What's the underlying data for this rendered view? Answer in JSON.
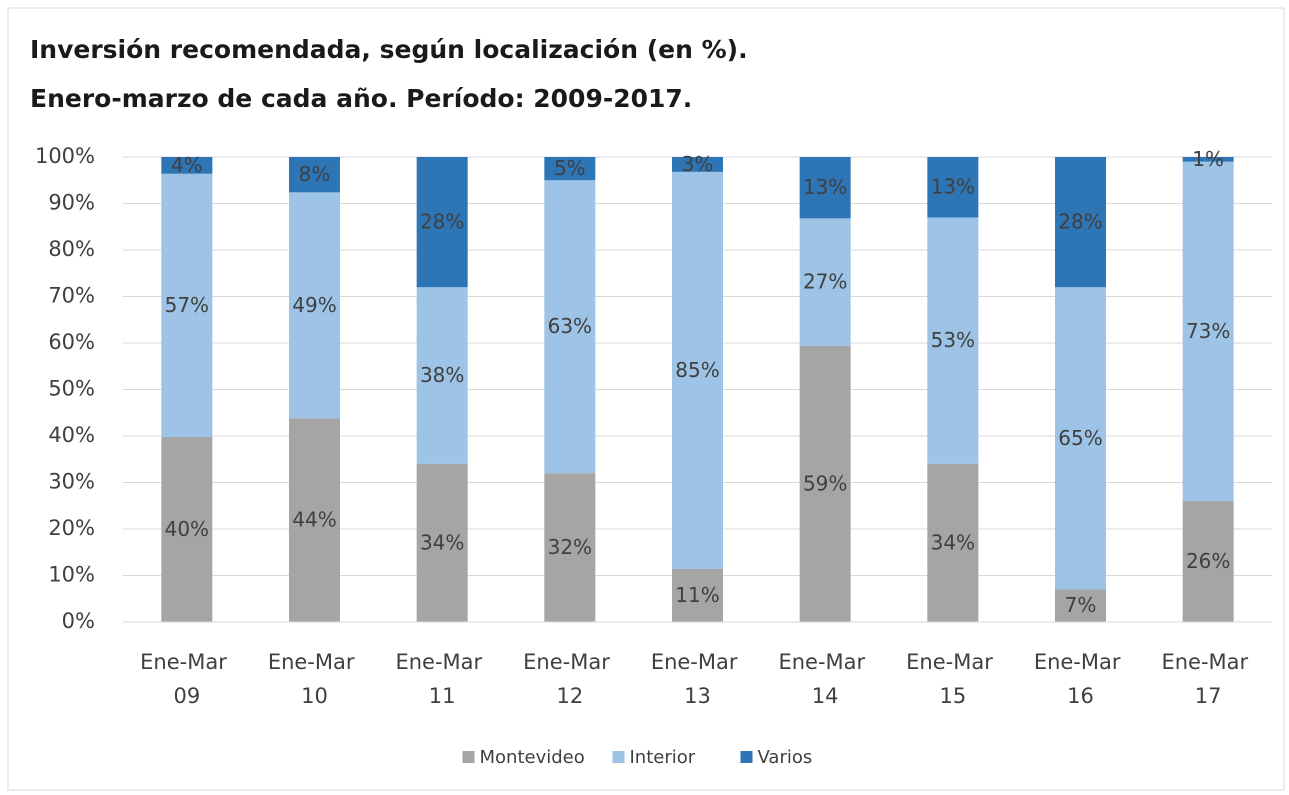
{
  "chart_data": {
    "type": "stacked_bar",
    "title": [
      "Inversión recomendada, según localización (en %).",
      "Enero-marzo de cada año. Período: 2009-2017."
    ],
    "categories": [
      "Ene-Mar 09",
      "Ene-Mar 10",
      "Ene-Mar 11",
      "Ene-Mar 12",
      "Ene-Mar 13",
      "Ene-Mar 14",
      "Ene-Mar 15",
      "Ene-Mar 16",
      "Ene-Mar 17"
    ],
    "series": [
      {
        "name": "Montevideo",
        "color": "#a5a5a5",
        "values": [
          39.8,
          43.8,
          34,
          32,
          11.4,
          59.4,
          34,
          7,
          26
        ],
        "value_labels": [
          "40%",
          "44%",
          "34%",
          "32%",
          "11%",
          "59%",
          "34%",
          "7%",
          "26%"
        ]
      },
      {
        "name": "Interior",
        "color": "#9dc3e6",
        "values": [
          56.6,
          48.6,
          38,
          63,
          85.4,
          27.4,
          53,
          65,
          73
        ],
        "value_labels": [
          "57%",
          "49%",
          "38%",
          "63%",
          "85%",
          "27%",
          "53%",
          "65%",
          "73%"
        ]
      },
      {
        "name": "Varios",
        "color": "#2e75b6",
        "values": [
          3.6,
          7.6,
          28,
          5,
          3.2,
          13.2,
          13,
          28,
          1
        ],
        "value_labels": [
          "4%",
          "8%",
          "28%",
          "5%",
          "3%",
          "13%",
          "13%",
          "28%",
          "1%"
        ]
      }
    ],
    "ylim": [
      0,
      100
    ],
    "yticks": [
      {
        "value": 0,
        "label": "0%"
      },
      {
        "value": 10,
        "label": "10%"
      },
      {
        "value": 20,
        "label": "20%"
      },
      {
        "value": 30,
        "label": "30%"
      },
      {
        "value": 40,
        "label": "40%"
      },
      {
        "value": 50,
        "label": "50%"
      },
      {
        "value": 60,
        "label": "60%"
      },
      {
        "value": 70,
        "label": "70%"
      },
      {
        "value": 80,
        "label": "80%"
      },
      {
        "value": 90,
        "label": "90%"
      },
      {
        "value": 100,
        "label": "100%"
      }
    ],
    "grid": true,
    "legend": "bottom"
  }
}
